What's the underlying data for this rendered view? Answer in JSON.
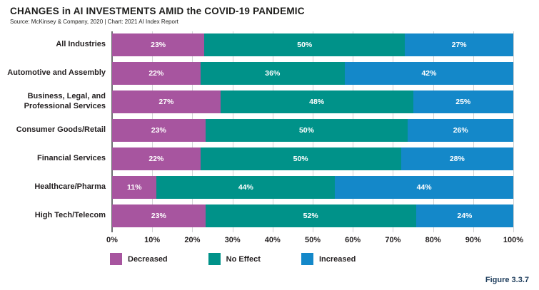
{
  "header": {
    "title": "CHANGES in AI INVESTMENTS AMID the COVID-19 PANDEMIC",
    "source": "Source: McKinsey & Company, 2020 | Chart: 2021 AI Index Report"
  },
  "chart_data": {
    "type": "bar",
    "stacked": true,
    "orientation": "horizontal",
    "title": "CHANGES in AI INVESTMENTS AMID the COVID-19 PANDEMIC",
    "categories": [
      "All Industries",
      "Automotive and Assembly",
      "Business, Legal, and Professional Services",
      "Consumer Goods/Retail",
      "Financial Services",
      "Healthcare/Pharma",
      "High Tech/Telecom"
    ],
    "series": [
      {
        "name": "Decreased",
        "color": "#a7559f",
        "values": [
          23,
          22,
          27,
          23,
          22,
          11,
          23
        ]
      },
      {
        "name": "No Effect",
        "color": "#009289",
        "values": [
          50,
          36,
          48,
          50,
          50,
          44,
          52
        ]
      },
      {
        "name": "Increased",
        "color": "#1488c9",
        "values": [
          27,
          42,
          25,
          26,
          28,
          44,
          24
        ]
      }
    ],
    "value_suffix": "%",
    "xlim": [
      0,
      100
    ],
    "x_tick_labels": [
      "0%",
      "10%",
      "20%",
      "30%",
      "40%",
      "50%",
      "60%",
      "70%",
      "80%",
      "90%",
      "100%"
    ],
    "grid": true,
    "legend_position": "bottom"
  },
  "figure_caption": "Figure 3.3.7",
  "colors": {
    "decreased": "#a7559f",
    "no_effect": "#009289",
    "increased": "#1488c9",
    "gridline": "#d2d3d5",
    "axis_line": "#6d6e71",
    "text": "#231f20",
    "caption": "#1e3d5c"
  }
}
